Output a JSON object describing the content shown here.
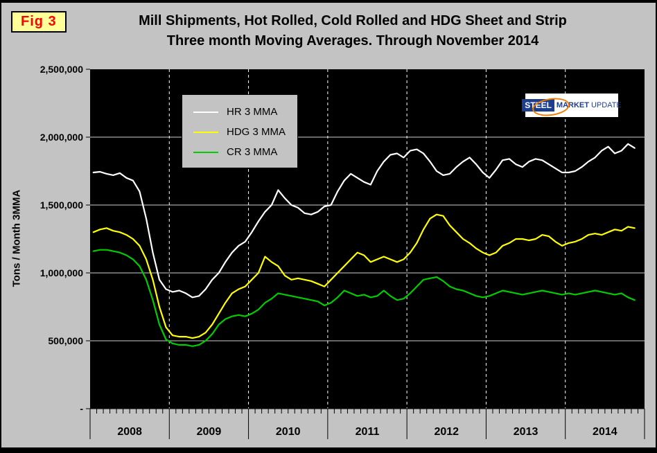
{
  "fig_label": "Fig 3",
  "title": {
    "line1": "Mill Shipments, Hot Rolled, Cold Rolled and HDG Sheet and Strip",
    "line2": "Three month Moving Averages. Through November 2014"
  },
  "y_axis_title": "Tons / Month 3MMA",
  "logo": {
    "word1": "STEEL",
    "word2": "MARKET",
    "word3": "UPDATE"
  },
  "chart_data": {
    "type": "line",
    "title": "Mill Shipments, Hot Rolled, Cold Rolled and HDG Sheet and Strip",
    "subtitle": "Three month Moving Averages. Through November 2014",
    "xlabel": "",
    "ylabel": "Tons / Month 3MMA",
    "ylim": [
      0,
      2500000
    ],
    "ytick_step": 500000,
    "ytick_labels": [
      "-",
      "500,000",
      "1,000,000",
      "1,500,000",
      "2,000,000",
      "2,500,000"
    ],
    "x_start": "2008-01",
    "x_end": "2014-11",
    "axis_months": 84,
    "year_labels": [
      "2008",
      "2009",
      "2010",
      "2011",
      "2012",
      "2013",
      "2014"
    ],
    "plot_background": "#000000",
    "page_background": "#c3c3c3",
    "grid": true,
    "legend_position": "inside-top-left",
    "series": [
      {
        "name": "HR 3 MMA",
        "color": "#ffffff",
        "values": [
          1740000,
          1745000,
          1730000,
          1720000,
          1735000,
          1700000,
          1680000,
          1600000,
          1400000,
          1150000,
          950000,
          880000,
          860000,
          870000,
          850000,
          820000,
          830000,
          880000,
          950000,
          1000000,
          1080000,
          1150000,
          1200000,
          1230000,
          1300000,
          1380000,
          1450000,
          1500000,
          1610000,
          1550000,
          1500000,
          1480000,
          1440000,
          1430000,
          1450000,
          1490000,
          1500000,
          1600000,
          1680000,
          1730000,
          1700000,
          1670000,
          1650000,
          1750000,
          1820000,
          1870000,
          1880000,
          1850000,
          1900000,
          1910000,
          1880000,
          1820000,
          1750000,
          1720000,
          1730000,
          1780000,
          1820000,
          1850000,
          1800000,
          1740000,
          1700000,
          1760000,
          1830000,
          1840000,
          1800000,
          1780000,
          1820000,
          1840000,
          1830000,
          1800000,
          1770000,
          1740000,
          1740000,
          1750000,
          1780000,
          1820000,
          1850000,
          1900000,
          1930000,
          1880000,
          1900000,
          1950000,
          1920000
        ]
      },
      {
        "name": "HDG 3 MMA",
        "color": "#ffff00",
        "values": [
          1300000,
          1320000,
          1330000,
          1310000,
          1300000,
          1280000,
          1250000,
          1200000,
          1100000,
          950000,
          750000,
          600000,
          540000,
          530000,
          530000,
          520000,
          530000,
          560000,
          620000,
          700000,
          780000,
          850000,
          880000,
          900000,
          950000,
          1000000,
          1120000,
          1080000,
          1050000,
          980000,
          950000,
          960000,
          950000,
          940000,
          920000,
          900000,
          950000,
          1000000,
          1050000,
          1100000,
          1150000,
          1130000,
          1080000,
          1100000,
          1120000,
          1100000,
          1080000,
          1100000,
          1150000,
          1220000,
          1320000,
          1400000,
          1430000,
          1420000,
          1350000,
          1300000,
          1250000,
          1220000,
          1180000,
          1150000,
          1130000,
          1150000,
          1200000,
          1220000,
          1250000,
          1250000,
          1240000,
          1250000,
          1280000,
          1270000,
          1230000,
          1200000,
          1220000,
          1230000,
          1250000,
          1280000,
          1290000,
          1280000,
          1300000,
          1320000,
          1310000,
          1340000,
          1330000
        ]
      },
      {
        "name": "CR 3 MMA",
        "color": "#00cc00",
        "values": [
          1160000,
          1170000,
          1170000,
          1160000,
          1150000,
          1130000,
          1100000,
          1050000,
          950000,
          800000,
          620000,
          510000,
          480000,
          470000,
          470000,
          460000,
          470000,
          500000,
          550000,
          620000,
          660000,
          680000,
          690000,
          680000,
          700000,
          730000,
          780000,
          810000,
          850000,
          840000,
          830000,
          820000,
          810000,
          800000,
          790000,
          760000,
          780000,
          820000,
          870000,
          850000,
          830000,
          840000,
          820000,
          830000,
          870000,
          830000,
          800000,
          810000,
          850000,
          900000,
          950000,
          960000,
          970000,
          940000,
          900000,
          880000,
          870000,
          850000,
          830000,
          820000,
          830000,
          850000,
          870000,
          860000,
          850000,
          840000,
          850000,
          860000,
          870000,
          860000,
          850000,
          840000,
          850000,
          840000,
          850000,
          860000,
          870000,
          860000,
          850000,
          840000,
          850000,
          820000,
          800000
        ]
      }
    ]
  }
}
